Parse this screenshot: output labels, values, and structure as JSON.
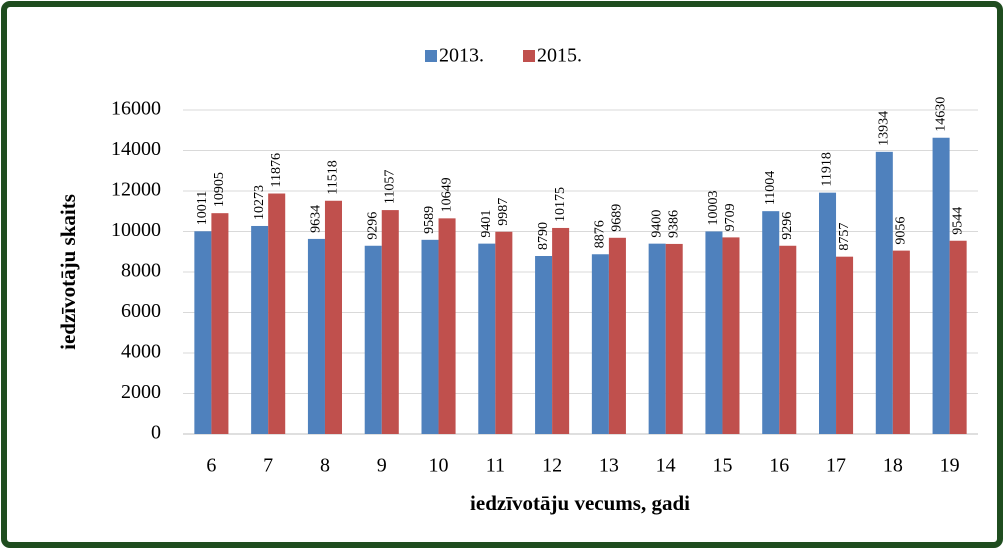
{
  "chart_data": {
    "type": "bar",
    "x_label": "iedzīvotāju vecums, gadi",
    "y_label": "iedzīvotāju skaits",
    "categories": [
      "6",
      "7",
      "8",
      "9",
      "10",
      "11",
      "12",
      "13",
      "14",
      "15",
      "16",
      "17",
      "18",
      "19"
    ],
    "series": [
      {
        "name": "2013.",
        "color": "#4f81bd",
        "values": [
          10011,
          10273,
          9634,
          9296,
          9589,
          9401,
          8790,
          8876,
          9400,
          10003,
          11004,
          11918,
          13934,
          14630
        ]
      },
      {
        "name": "2015.",
        "color": "#c0504d",
        "values": [
          10905,
          11876,
          11518,
          11057,
          10649,
          9987,
          10175,
          9689,
          9386,
          9709,
          9296,
          8757,
          9056,
          9544
        ]
      }
    ],
    "ylim": [
      0,
      16000
    ],
    "yticks": [
      0,
      2000,
      4000,
      6000,
      8000,
      10000,
      12000,
      14000,
      16000
    ],
    "grid": true,
    "legend": "top"
  }
}
